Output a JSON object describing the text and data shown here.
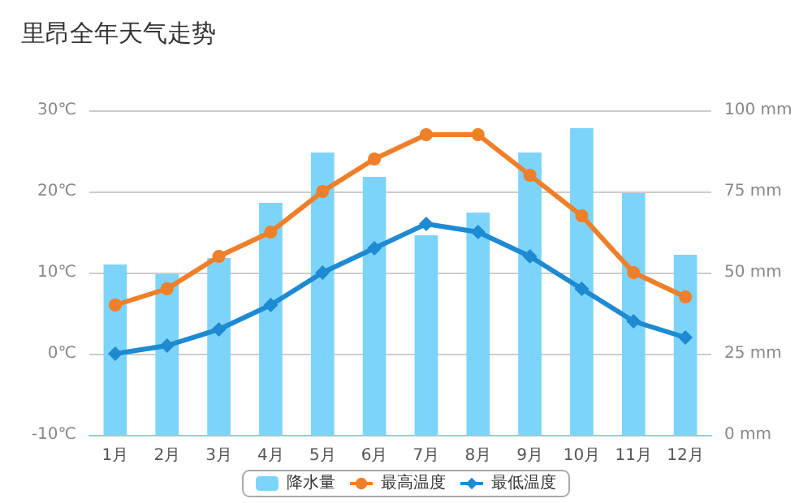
{
  "chart_data": {
    "type": "bar",
    "title": "里昂全年天气走势",
    "categories": [
      "1月",
      "2月",
      "3月",
      "4月",
      "5月",
      "6月",
      "7月",
      "8月",
      "9月",
      "10月",
      "11月",
      "12月"
    ],
    "series": [
      {
        "name": "降水量",
        "axis": "y2",
        "color": "#7dd4fb",
        "values": [
          52.5,
          49.5,
          54.5,
          71.5,
          87,
          79.5,
          61.5,
          68.5,
          87,
          94.5,
          74.5,
          55.5
        ]
      },
      {
        "name": "最高温度",
        "type": "line",
        "marker": "circle",
        "color": "#f07f2a",
        "values": [
          6,
          8,
          12,
          15,
          20,
          24,
          27,
          27,
          22,
          17,
          10,
          7
        ]
      },
      {
        "name": "最低温度",
        "type": "line",
        "marker": "diamond",
        "color": "#1e8ad2",
        "values": [
          0,
          1,
          3,
          6,
          10,
          13,
          16,
          15,
          12,
          8,
          4,
          2
        ]
      }
    ],
    "ylim": [
      -10,
      30
    ],
    "yticks": [
      {
        "value": -10,
        "label": "-10℃"
      },
      {
        "value": 0,
        "label": "0℃"
      },
      {
        "value": 10,
        "label": "10℃"
      },
      {
        "value": 20,
        "label": "20℃"
      },
      {
        "value": 30,
        "label": "30℃"
      }
    ],
    "y2lim": [
      0,
      100
    ],
    "y2ticks": [
      {
        "value": 0,
        "label": "0 mm"
      },
      {
        "value": 25,
        "label": "25 mm"
      },
      {
        "value": 50,
        "label": "50 mm"
      },
      {
        "value": 75,
        "label": "75 mm"
      },
      {
        "value": 100,
        "label": "100 mm"
      }
    ],
    "grid": "y",
    "legend": "bottom",
    "line_style": "solid"
  }
}
